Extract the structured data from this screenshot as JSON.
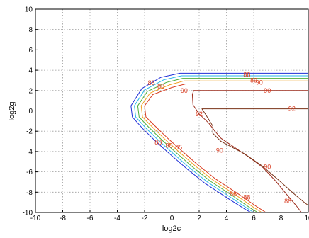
{
  "chart_data": {
    "type": "line",
    "title": "",
    "xlabel": "log2c",
    "ylabel": "log2g",
    "xlim": [
      -10,
      10
    ],
    "ylim": [
      -10,
      10
    ],
    "x_ticks": [
      "-10",
      "-8",
      "-6",
      "-4",
      "-2",
      "0",
      "2",
      "4",
      "6",
      "8",
      "10"
    ],
    "y_ticks": [
      "-10",
      "-8",
      "-6",
      "-4",
      "-2",
      "0",
      "2",
      "4",
      "6",
      "8",
      "10"
    ],
    "grid": true,
    "grid_style": "dotted",
    "series": [
      {
        "color": "#1f2fd8",
        "points": [
          [
            10,
            3.7
          ],
          [
            0.6,
            3.7
          ],
          [
            -0.8,
            3.3
          ],
          [
            -2.2,
            2.2
          ],
          [
            -3,
            0.5
          ],
          [
            -2.9,
            -0.6
          ],
          [
            -2.1,
            -1.8
          ],
          [
            -1.1,
            -3.1
          ],
          [
            -0.1,
            -4.3
          ],
          [
            1.1,
            -5.7
          ],
          [
            2.4,
            -7.1
          ],
          [
            4.1,
            -8.6
          ],
          [
            5.4,
            -9.7
          ],
          [
            5.8,
            -10
          ]
        ]
      },
      {
        "color": "#27b7e8",
        "points": [
          [
            10,
            3.45
          ],
          [
            0.7,
            3.45
          ],
          [
            -0.6,
            3.05
          ],
          [
            -2,
            2.05
          ],
          [
            -2.75,
            0.5
          ],
          [
            -2.65,
            -0.6
          ],
          [
            -1.9,
            -1.7
          ],
          [
            -0.9,
            -3.0
          ],
          [
            0.1,
            -4.2
          ],
          [
            1.3,
            -5.6
          ],
          [
            2.6,
            -7.0
          ],
          [
            4.3,
            -8.5
          ],
          [
            5.6,
            -9.65
          ],
          [
            6.0,
            -10
          ]
        ]
      },
      {
        "color": "#4fae3a",
        "points": [
          [
            10,
            3.2
          ],
          [
            0.8,
            3.2
          ],
          [
            -0.4,
            2.8
          ],
          [
            -1.8,
            1.9
          ],
          [
            -2.5,
            0.5
          ],
          [
            -2.4,
            -0.6
          ],
          [
            -1.7,
            -1.6
          ],
          [
            -0.7,
            -2.9
          ],
          [
            0.3,
            -4.1
          ],
          [
            1.5,
            -5.5
          ],
          [
            2.8,
            -6.9
          ],
          [
            4.5,
            -8.4
          ],
          [
            5.8,
            -9.6
          ],
          [
            6.3,
            -10
          ]
        ]
      },
      {
        "color": "#f0a020",
        "points": [
          [
            10,
            2.95
          ],
          [
            0.9,
            2.95
          ],
          [
            -0.2,
            2.55
          ],
          [
            -1.6,
            1.75
          ],
          [
            -2.25,
            0.5
          ],
          [
            -2.15,
            -0.6
          ],
          [
            -1.5,
            -1.5
          ],
          [
            -0.5,
            -2.8
          ],
          [
            0.5,
            -4.0
          ],
          [
            1.7,
            -5.4
          ],
          [
            3.0,
            -6.8
          ],
          [
            4.7,
            -8.3
          ],
          [
            6.0,
            -9.5
          ],
          [
            6.6,
            -10
          ]
        ]
      },
      {
        "color": "#d83a1e",
        "points": [
          [
            10,
            2.65
          ],
          [
            1.0,
            2.65
          ],
          [
            0.0,
            2.3
          ],
          [
            -1.4,
            1.6
          ],
          [
            -2.0,
            0.5
          ],
          [
            -1.9,
            -0.6
          ],
          [
            -1.3,
            -1.4
          ],
          [
            -0.3,
            -2.7
          ],
          [
            0.7,
            -3.9
          ],
          [
            1.9,
            -5.3
          ],
          [
            3.2,
            -6.7
          ],
          [
            4.9,
            -8.2
          ],
          [
            6.2,
            -9.4
          ],
          [
            6.9,
            -10
          ]
        ]
      },
      {
        "color": "#9b2a1a",
        "points": [
          [
            10,
            2.0
          ],
          [
            1.6,
            2.0
          ],
          [
            1.5,
            1.6
          ],
          [
            1.55,
            0.6
          ],
          [
            2.0,
            -0.3
          ],
          [
            2.7,
            -1.2
          ],
          [
            3.1,
            -1.9
          ],
          [
            3.6,
            -2.7
          ],
          [
            4.6,
            -3.6
          ],
          [
            5.7,
            -4.6
          ],
          [
            6.7,
            -5.6
          ],
          [
            7.6,
            -6.9
          ],
          [
            8.4,
            -8.2
          ],
          [
            9.1,
            -9.3
          ],
          [
            9.5,
            -10
          ]
        ]
      },
      {
        "color": "#7a3318",
        "points": [
          [
            10,
            0.2
          ],
          [
            2.2,
            0.2
          ],
          [
            2.5,
            -0.4
          ],
          [
            3.0,
            -1.5
          ],
          [
            3.0,
            -2.2
          ],
          [
            3.6,
            -3.0
          ],
          [
            5.3,
            -4.2
          ],
          [
            6.6,
            -5.4
          ],
          [
            7.9,
            -6.9
          ],
          [
            8.9,
            -8.1
          ],
          [
            9.7,
            -9.0
          ],
          [
            10,
            -9.3
          ]
        ]
      }
    ],
    "contour_labels": [
      {
        "text": "88",
        "x": -1.5,
        "y": 2.75,
        "color": "#d83a1e"
      },
      {
        "text": "88",
        "x": -0.8,
        "y": 2.4,
        "color": "#d83a1e"
      },
      {
        "text": "90",
        "x": 0.9,
        "y": 2.0,
        "color": "#d83a1e"
      },
      {
        "text": "88",
        "x": -1.0,
        "y": -3.1,
        "color": "#d83a1e"
      },
      {
        "text": "88",
        "x": -0.2,
        "y": -3.4,
        "color": "#d83a1e"
      },
      {
        "text": "85",
        "x": 0.5,
        "y": -3.6,
        "color": "#d83a1e"
      },
      {
        "text": "88",
        "x": 5.5,
        "y": 3.55,
        "color": "#d83a1e"
      },
      {
        "text": "89",
        "x": 6.0,
        "y": 3.0,
        "color": "#d83a1e"
      },
      {
        "text": "90",
        "x": 6.4,
        "y": 2.8,
        "color": "#d83a1e"
      },
      {
        "text": "90",
        "x": 7.0,
        "y": 2.0,
        "color": "#d83a1e"
      },
      {
        "text": "92",
        "x": 2.0,
        "y": -0.3,
        "color": "#d83a1e"
      },
      {
        "text": "92",
        "x": 8.8,
        "y": 0.2,
        "color": "#d83a1e"
      },
      {
        "text": "90",
        "x": 3.5,
        "y": -3.9,
        "color": "#d83a1e"
      },
      {
        "text": "90",
        "x": 7.0,
        "y": -5.5,
        "color": "#d83a1e"
      },
      {
        "text": "88",
        "x": 4.5,
        "y": -8.2,
        "color": "#d83a1e"
      },
      {
        "text": "88",
        "x": 5.5,
        "y": -8.5,
        "color": "#d83a1e"
      },
      {
        "text": "88",
        "x": 8.5,
        "y": -8.9,
        "color": "#d83a1e"
      }
    ]
  }
}
